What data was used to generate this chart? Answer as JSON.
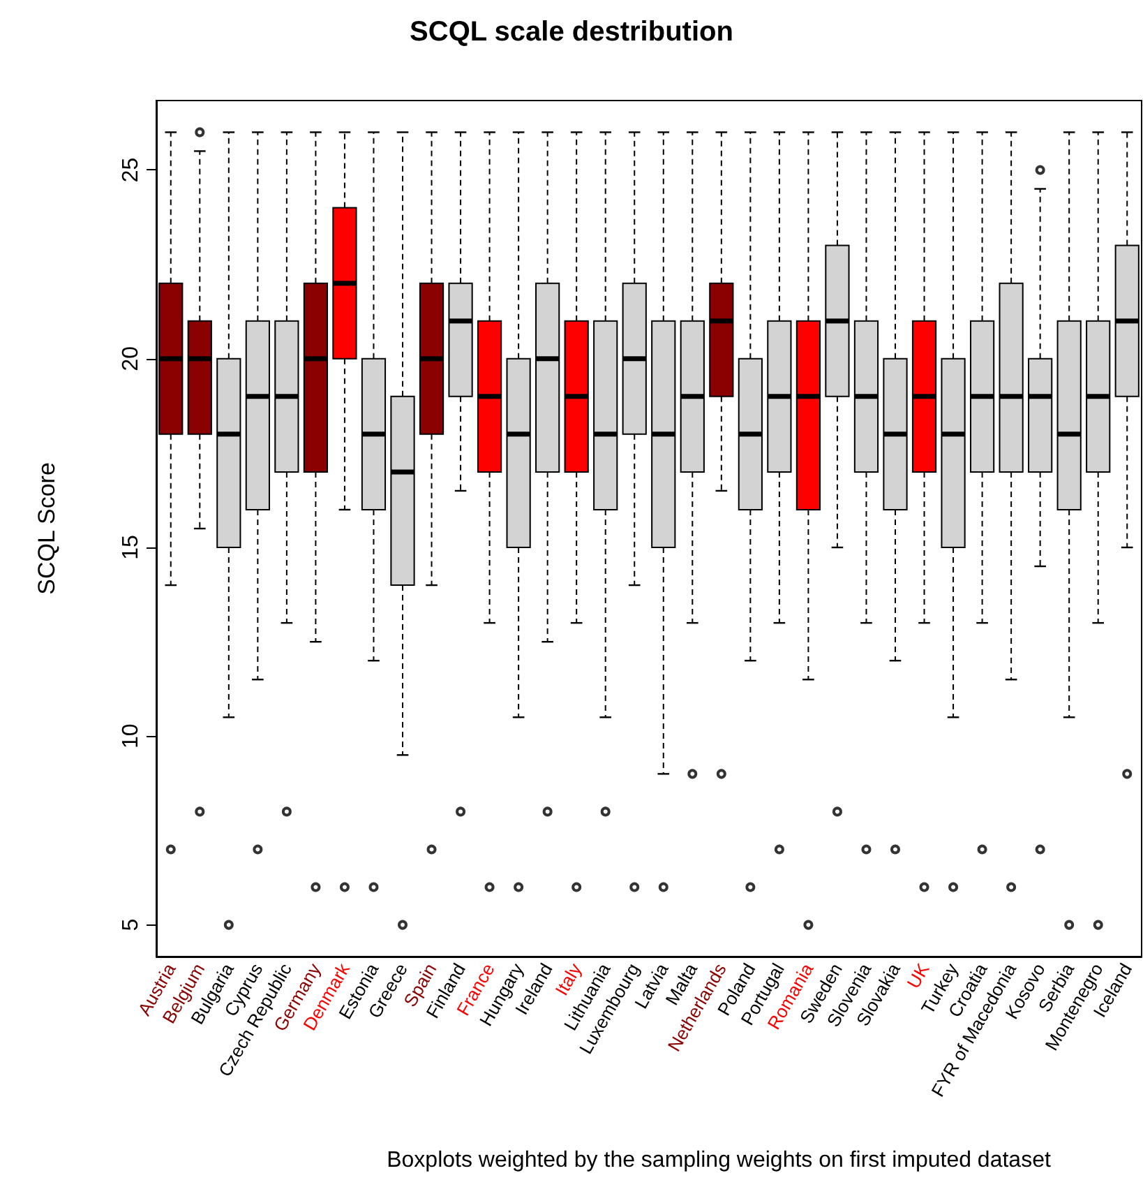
{
  "chart_data": {
    "type": "box",
    "title": "SCQL scale destribution",
    "ylabel": "SCQL Score",
    "xlabel": "Boxplots weighted by the sampling weights on first imputed dataset",
    "categories": [
      "Austria",
      "Belgium",
      "Bulgaria",
      "Cyprus",
      "Czech Republic",
      "Germany",
      "Denmark",
      "Estonia",
      "Greece",
      "Spain",
      "Finland",
      "France",
      "Hungary",
      "Ireland",
      "Italy",
      "Lithuania",
      "Luxembourg",
      "Latvia",
      "Malta",
      "Netherlands",
      "Poland",
      "Portugal",
      "Romania",
      "Sweden",
      "Slovenia",
      "Slovakia",
      "UK",
      "Turkey",
      "Croatia",
      "FYR of Macedonia",
      "Kosovo",
      "Serbia",
      "Montenegro",
      "Iceland"
    ],
    "colors": [
      "#8b0000",
      "#8b0000",
      "#d3d3d3",
      "#d3d3d3",
      "#d3d3d3",
      "#8b0000",
      "#ff0000",
      "#d3d3d3",
      "#d3d3d3",
      "#8b0000",
      "#d3d3d3",
      "#ff0000",
      "#d3d3d3",
      "#d3d3d3",
      "#ff0000",
      "#d3d3d3",
      "#d3d3d3",
      "#d3d3d3",
      "#d3d3d3",
      "#8b0000",
      "#d3d3d3",
      "#d3d3d3",
      "#ff0000",
      "#d3d3d3",
      "#d3d3d3",
      "#d3d3d3",
      "#ff0000",
      "#d3d3d3",
      "#d3d3d3",
      "#d3d3d3",
      "#d3d3d3",
      "#d3d3d3",
      "#d3d3d3",
      "#d3d3d3"
    ],
    "boxes": [
      {
        "low": 14,
        "q1": 18,
        "median": 20,
        "q3": 22,
        "high": 26,
        "outliers": [
          7
        ]
      },
      {
        "low": 15.5,
        "q1": 18,
        "median": 20,
        "q3": 21,
        "high": 25.5,
        "outliers": [
          26,
          8
        ]
      },
      {
        "low": 10.5,
        "q1": 15,
        "median": 18,
        "q3": 20,
        "high": 26,
        "outliers": [
          5
        ]
      },
      {
        "low": 11.5,
        "q1": 16,
        "median": 19,
        "q3": 21,
        "high": 26,
        "outliers": [
          7
        ]
      },
      {
        "low": 13,
        "q1": 17,
        "median": 19,
        "q3": 21,
        "high": 26,
        "outliers": [
          8
        ]
      },
      {
        "low": 12.5,
        "q1": 17,
        "median": 20,
        "q3": 22,
        "high": 26,
        "outliers": [
          6
        ]
      },
      {
        "low": 16,
        "q1": 20,
        "median": 22,
        "q3": 24,
        "high": 26,
        "outliers": [
          6
        ]
      },
      {
        "low": 12,
        "q1": 16,
        "median": 18,
        "q3": 20,
        "high": 26,
        "outliers": [
          6
        ]
      },
      {
        "low": 9.5,
        "q1": 14,
        "median": 17,
        "q3": 19,
        "high": 26,
        "outliers": [
          5
        ]
      },
      {
        "low": 14,
        "q1": 18,
        "median": 20,
        "q3": 22,
        "high": 26,
        "outliers": [
          7
        ]
      },
      {
        "low": 16.5,
        "q1": 19,
        "median": 21,
        "q3": 22,
        "high": 26,
        "outliers": [
          8
        ]
      },
      {
        "low": 13,
        "q1": 17,
        "median": 19,
        "q3": 21,
        "high": 26,
        "outliers": [
          6
        ]
      },
      {
        "low": 10.5,
        "q1": 15,
        "median": 18,
        "q3": 20,
        "high": 26,
        "outliers": [
          6
        ]
      },
      {
        "low": 12.5,
        "q1": 17,
        "median": 20,
        "q3": 22,
        "high": 26,
        "outliers": [
          8
        ]
      },
      {
        "low": 13,
        "q1": 17,
        "median": 19,
        "q3": 21,
        "high": 26,
        "outliers": [
          6
        ]
      },
      {
        "low": 10.5,
        "q1": 16,
        "median": 18,
        "q3": 21,
        "high": 26,
        "outliers": [
          8
        ]
      },
      {
        "low": 14,
        "q1": 18,
        "median": 20,
        "q3": 22,
        "high": 26,
        "outliers": [
          6
        ]
      },
      {
        "low": 9,
        "q1": 15,
        "median": 18,
        "q3": 21,
        "high": 26,
        "outliers": [
          6
        ]
      },
      {
        "low": 13,
        "q1": 17,
        "median": 19,
        "q3": 21,
        "high": 26,
        "outliers": [
          9
        ]
      },
      {
        "low": 16.5,
        "q1": 19,
        "median": 21,
        "q3": 22,
        "high": 26,
        "outliers": [
          9
        ]
      },
      {
        "low": 12,
        "q1": 16,
        "median": 18,
        "q3": 20,
        "high": 26,
        "outliers": [
          6
        ]
      },
      {
        "low": 13,
        "q1": 17,
        "median": 19,
        "q3": 21,
        "high": 26,
        "outliers": [
          7
        ]
      },
      {
        "low": 11.5,
        "q1": 16,
        "median": 19,
        "q3": 21,
        "high": 26,
        "outliers": [
          5
        ]
      },
      {
        "low": 15,
        "q1": 19,
        "median": 21,
        "q3": 23,
        "high": 26,
        "outliers": [
          8
        ]
      },
      {
        "low": 13,
        "q1": 17,
        "median": 19,
        "q3": 21,
        "high": 26,
        "outliers": [
          7
        ]
      },
      {
        "low": 12,
        "q1": 16,
        "median": 18,
        "q3": 20,
        "high": 26,
        "outliers": [
          7
        ]
      },
      {
        "low": 13,
        "q1": 17,
        "median": 19,
        "q3": 21,
        "high": 26,
        "outliers": [
          6
        ]
      },
      {
        "low": 10.5,
        "q1": 15,
        "median": 18,
        "q3": 20,
        "high": 26,
        "outliers": [
          6
        ]
      },
      {
        "low": 13,
        "q1": 17,
        "median": 19,
        "q3": 21,
        "high": 26,
        "outliers": [
          7
        ]
      },
      {
        "low": 11.5,
        "q1": 17,
        "median": 19,
        "q3": 22,
        "high": 26,
        "outliers": [
          6
        ]
      },
      {
        "low": 14.5,
        "q1": 17,
        "median": 19,
        "q3": 20,
        "high": 24.5,
        "outliers": [
          25,
          7
        ]
      },
      {
        "low": 10.5,
        "q1": 16,
        "median": 18,
        "q3": 21,
        "high": 26,
        "outliers": [
          5
        ]
      },
      {
        "low": 13,
        "q1": 17,
        "median": 19,
        "q3": 21,
        "high": 26,
        "outliers": [
          5
        ]
      },
      {
        "low": 15,
        "q1": 19,
        "median": 21,
        "q3": 23,
        "high": 26,
        "outliers": [
          9
        ]
      }
    ],
    "ylim": [
      4.16,
      26.84
    ],
    "yticks": [
      5,
      10,
      15,
      20,
      25
    ],
    "grid": false
  }
}
